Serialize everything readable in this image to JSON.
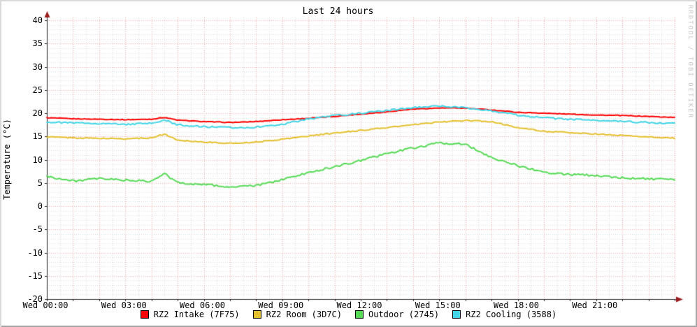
{
  "title": "Last 24 hours",
  "watermark": "RRDTOOL / TOBI OETIKER",
  "colors": {
    "canvas": "#ffffff",
    "axis": "#222222",
    "arrow": "#9b1c1c",
    "grid_major": "#f2a0a0",
    "grid_minor": "#d9d9d9",
    "text": "#000000",
    "watermark": "#c6c6c6",
    "border_light": "#d9d9d9",
    "border_dark": "#a6a6a6"
  },
  "chart_data": {
    "type": "line",
    "title": "Last 24 hours",
    "xlabel": "",
    "ylabel": "Temperature (°C)",
    "ylim": [
      -20,
      40
    ],
    "y_major_step": 5,
    "y_minor_step": 1,
    "y_ticks": [
      40,
      35,
      30,
      25,
      20,
      15,
      10,
      5,
      0,
      -5,
      -10,
      -15,
      -20
    ],
    "x_range_hours": [
      0,
      24
    ],
    "x_major_step_hours": 1,
    "x_minor_step_hours": 0.5,
    "x_ticks": [
      {
        "hour": 0,
        "label": "Wed 00:00"
      },
      {
        "hour": 3,
        "label": "Wed 03:00"
      },
      {
        "hour": 6,
        "label": "Wed 06:00"
      },
      {
        "hour": 9,
        "label": "Wed 09:00"
      },
      {
        "hour": 12,
        "label": "Wed 12:00"
      },
      {
        "hour": 15,
        "label": "Wed 15:00"
      },
      {
        "hour": 18,
        "label": "Wed 18:00"
      },
      {
        "hour": 21,
        "label": "Wed 21:00"
      }
    ],
    "grid": true,
    "legend_position": "bottom",
    "x": [
      0,
      1,
      2,
      3,
      4,
      4.5,
      5,
      6,
      7,
      8,
      9,
      10,
      11,
      12,
      13,
      14,
      15,
      16,
      17,
      18,
      19,
      20,
      21,
      22,
      23,
      24
    ],
    "series": [
      {
        "name": "RZ2 Intake (7F75)",
        "color": "#ff0000",
        "jitter": 0.07,
        "values": [
          19.0,
          18.8,
          18.7,
          18.6,
          18.7,
          19.1,
          18.5,
          18.2,
          18.0,
          18.2,
          18.6,
          18.9,
          19.3,
          19.8,
          20.3,
          20.9,
          21.1,
          21.1,
          20.7,
          20.2,
          20.0,
          19.8,
          19.6,
          19.5,
          19.3,
          19.1
        ]
      },
      {
        "name": "RZ2 Room (3D7C)",
        "color": "#e4c02e",
        "jitter": 0.12,
        "values": [
          14.9,
          14.7,
          14.6,
          14.5,
          14.7,
          15.5,
          14.2,
          13.8,
          13.5,
          13.8,
          14.4,
          15.1,
          15.7,
          16.3,
          16.9,
          17.5,
          18.1,
          18.4,
          18.2,
          16.9,
          16.1,
          15.8,
          15.5,
          15.2,
          14.9,
          14.6
        ]
      },
      {
        "name": "Outdoor (2745)",
        "color": "#55da55",
        "jitter": 0.22,
        "values": [
          6.4,
          5.4,
          5.9,
          5.6,
          5.3,
          7.0,
          5.0,
          4.7,
          4.1,
          4.4,
          5.7,
          7.2,
          8.5,
          9.8,
          11.3,
          12.5,
          13.6,
          13.3,
          10.5,
          8.7,
          7.3,
          6.8,
          6.6,
          6.1,
          5.9,
          5.6
        ]
      },
      {
        "name": "RZ2 Cooling (3588)",
        "color": "#42d5e6",
        "jitter": 0.17,
        "values": [
          18.1,
          17.9,
          17.8,
          17.6,
          17.8,
          18.5,
          17.5,
          17.1,
          16.9,
          17.0,
          17.6,
          18.8,
          19.5,
          20.0,
          20.6,
          21.2,
          21.5,
          21.2,
          20.5,
          19.6,
          19.0,
          18.7,
          18.5,
          18.2,
          18.0,
          17.8
        ]
      }
    ]
  }
}
